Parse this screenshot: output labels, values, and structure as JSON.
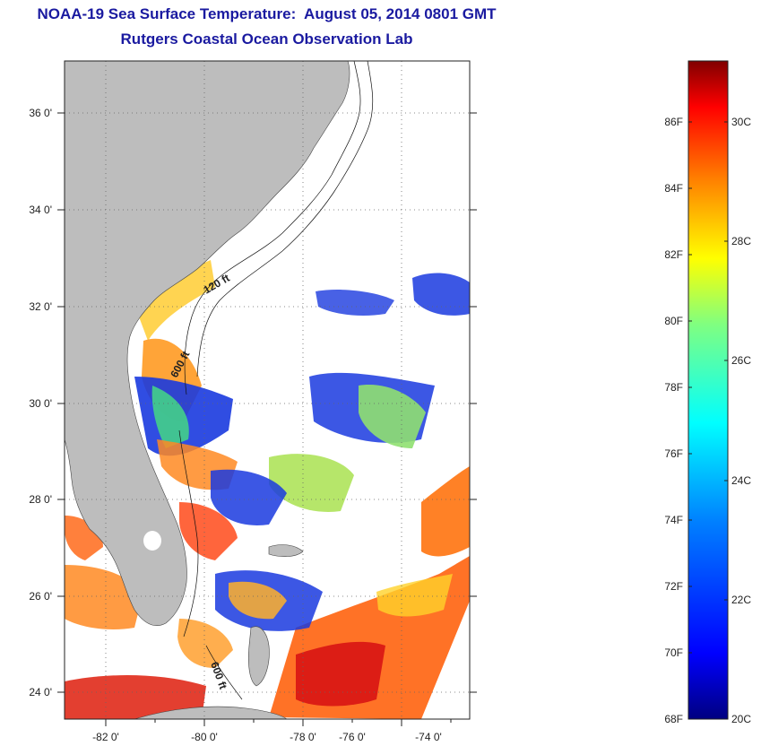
{
  "header": {
    "title": "NOAA-19 Sea Surface Temperature:  August 05, 2014 0801 GMT",
    "subtitle": "Rutgers Coastal Ocean Observation Lab"
  },
  "map": {
    "x_ticks": [
      "-82 0'",
      "-80 0'",
      "-78 0'",
      "-76 0'",
      "-74 0'"
    ],
    "y_ticks": [
      "36 0'",
      "34 0'",
      "32 0'",
      "30 0'",
      "28 0'",
      "26 0'",
      "24 0'"
    ],
    "contour_labels": [
      "120 ft",
      "600 ft",
      "600 ft"
    ]
  },
  "colorbar": {
    "f_labels": [
      "86F",
      "84F",
      "82F",
      "80F",
      "78F",
      "76F",
      "74F",
      "72F",
      "70F",
      "68F"
    ],
    "c_labels": [
      "30C",
      "28C",
      "26C",
      "24C",
      "22C",
      "20C"
    ],
    "range_f": [
      68,
      88
    ],
    "colors": [
      "#000080",
      "#0000ff",
      "#0080ff",
      "#00ffff",
      "#80ff80",
      "#ffff00",
      "#ff8000",
      "#ff0000",
      "#800000"
    ]
  },
  "colors": {
    "land": "#bdbdbd",
    "title": "#1a1aa0"
  }
}
